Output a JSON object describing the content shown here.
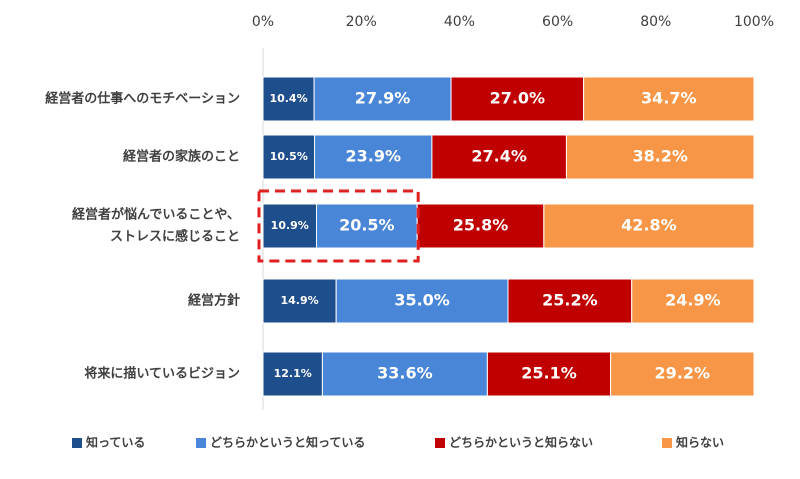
{
  "chart_data": {
    "type": "bar",
    "orientation": "horizontal",
    "stacked": true,
    "xlim": [
      0,
      100
    ],
    "x_ticks": [
      "0%",
      "20%",
      "40%",
      "60%",
      "80%",
      "100%"
    ],
    "categories": [
      [
        "経営者の仕事へのモチベーション"
      ],
      [
        "経営者の家族のこと"
      ],
      [
        "経営者が悩んでいることや、",
        "ストレスに感じること"
      ],
      [
        "経営方針"
      ],
      [
        "将来に描いているビジョン"
      ]
    ],
    "series": [
      {
        "name": "知っている",
        "color": "#1f4e8c",
        "values": [
          10.4,
          10.5,
          10.9,
          14.9,
          12.1
        ]
      },
      {
        "name": "どちらかというと知っている",
        "color": "#4a86d8",
        "values": [
          27.9,
          23.9,
          20.5,
          35.0,
          33.6
        ]
      },
      {
        "name": "どちらかというと知らない",
        "color": "#c00000",
        "values": [
          27.0,
          27.4,
          25.8,
          25.2,
          25.1
        ]
      },
      {
        "name": "知らない",
        "color": "#f79646",
        "values": [
          34.7,
          38.2,
          42.8,
          24.9,
          29.2
        ]
      }
    ],
    "value_suffix": "%",
    "highlight": {
      "category_index": 2,
      "series_indices": [
        0,
        1
      ],
      "style": "dashed",
      "color": "#e02020"
    },
    "legend_position": "bottom",
    "grid": false
  }
}
